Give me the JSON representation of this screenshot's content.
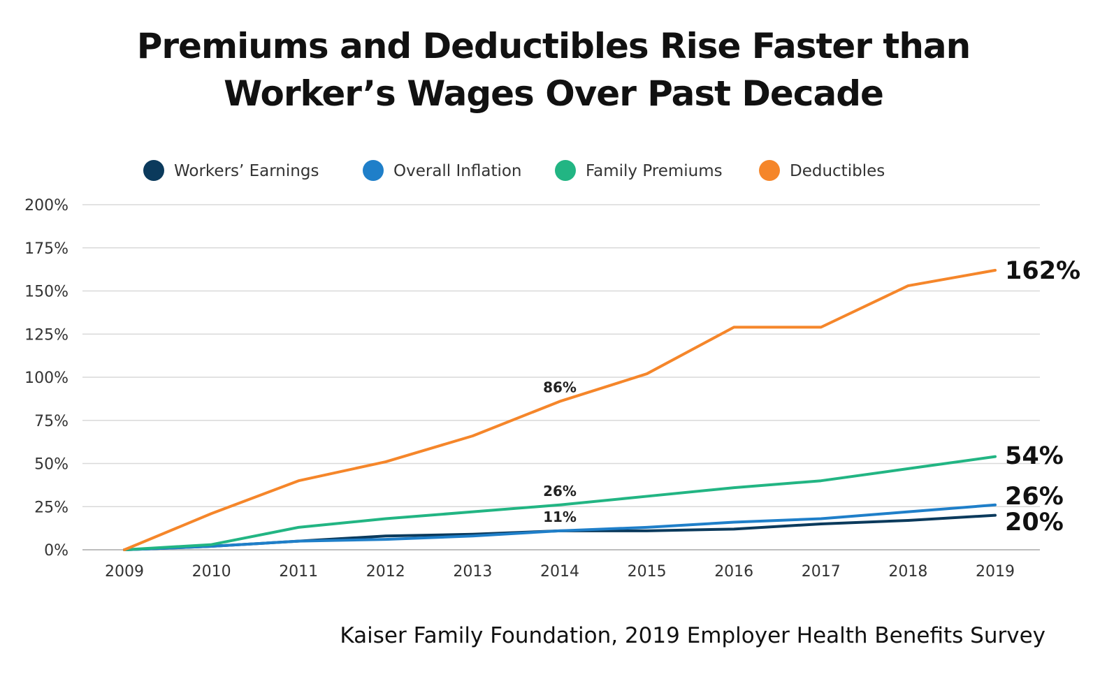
{
  "title_lines": [
    "Premiums and Deductibles Rise Faster than",
    "Worker’s Wages Over Past Decade"
  ],
  "source": "Kaiser Family Foundation, 2019 Employer Health Benefits Survey",
  "chart_data": {
    "type": "line",
    "title": "Premiums and Deductibles Rise Faster than Worker’s Wages Over Past Decade",
    "x": [
      "2009",
      "2010",
      "2011",
      "2012",
      "2013",
      "2014",
      "2015",
      "2016",
      "2017",
      "2018",
      "2019"
    ],
    "ylim": [
      0,
      200
    ],
    "yticks": [
      "0%",
      "25%",
      "50%",
      "75%",
      "100%",
      "125%",
      "150%",
      "175%",
      "200%"
    ],
    "grid": true,
    "legend_position": "top",
    "series": [
      {
        "name": "Workers’ Earnings",
        "color": "#0b3a5c",
        "values": [
          0,
          2,
          5,
          8,
          9,
          11,
          11,
          12,
          15,
          17,
          20
        ],
        "end_label": "20%"
      },
      {
        "name": "Overall Inflation",
        "color": "#1f7fc9",
        "values": [
          0,
          2,
          5,
          6,
          8,
          11,
          13,
          16,
          18,
          22,
          26
        ],
        "end_label": "26%"
      },
      {
        "name": "Family Premiums",
        "color": "#22b583",
        "values": [
          0,
          3,
          13,
          18,
          22,
          26,
          31,
          36,
          40,
          47,
          54
        ],
        "end_label": "54%"
      },
      {
        "name": "Deductibles",
        "color": "#f5862a",
        "values": [
          0,
          21,
          40,
          51,
          66,
          86,
          102,
          129,
          129,
          153,
          162
        ],
        "end_label": "162%"
      }
    ],
    "annotations": [
      {
        "x": "2014",
        "y": 86,
        "text": "86%"
      },
      {
        "x": "2014",
        "y": 26,
        "text": "26%"
      },
      {
        "x": "2014",
        "y": 11,
        "text": "11%"
      }
    ]
  }
}
